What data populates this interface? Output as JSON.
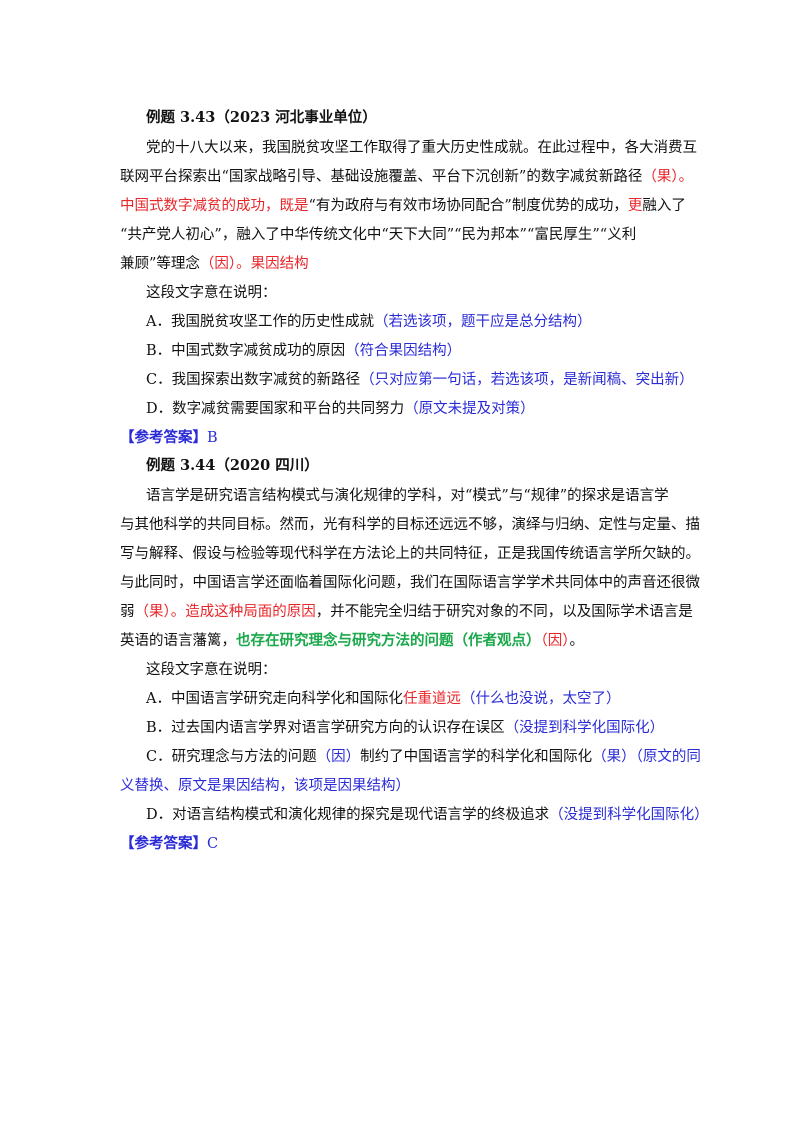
{
  "ex1": {
    "title": "例题 3.43（2023 河北事业单位）",
    "p1": "党的十八大以来，我国脱贫攻坚工作取得了重大历史性成就。在此过程中，各大消费互",
    "p2a": "联网平台探索出“国家战略引导、基础设施覆盖、平台下沉创新”的数字减贫新路径",
    "p2b": "（果）。",
    "p3a": "中国式数字减贫的成功，既是",
    "p3b": "“有为政府与有效市场协同配合”制度优势的成功，",
    "p3c": "更",
    "p3d": "融入了",
    "p4": "“共产党人初心”，融入了中华传统文化中“天下大同”“民为邦本”“富民厚生”“义利",
    "p5a": "兼顾”等理念",
    "p5b": "（因）。果因结构",
    "question": "这段文字意在说明：",
    "options": [
      {
        "text": "A．我国脱贫攻坚工作的历史性成就",
        "note": "（若选该项，题干应是总分结构）"
      },
      {
        "text": "B．中国式数字减贫成功的原因",
        "note": "（符合果因结构）"
      },
      {
        "text": "C．我国探索出数字减贫的新路径",
        "note": "（只对应第一句话，若选该项，是新闻稿、突出新）"
      },
      {
        "text": "D．数字减贫需要国家和平台的共同努力",
        "note": "（原文未提及对策）"
      }
    ],
    "answer_label": "【参考答案】",
    "answer": "B"
  },
  "ex2": {
    "title": "例题 3.44（2020 四川）",
    "p1": "语言学是研究语言结构模式与演化规律的学科，对“模式”与“规律”的探求是语言学",
    "p2": "与其他科学的共同目标。然而，光有科学的目标还远远不够，演绎与归纳、定性与定量、描",
    "p3": "写与解释、假设与检验等现代科学在方法论上的共同特征，正是我国传统语言学所欠缺的。",
    "p4": "与此同时，中国语言学还面临着国际化问题，我们在国际语言学学术共同体中的声音还很微",
    "p5a": "弱",
    "p5b": "（果）。造成这种局面的原因",
    "p5c": "，并不能完全归结于研究对象的不同，以及国际学术语言是",
    "p6a": "英语的语言藩篱，",
    "p6b": "也存在研究理念与研究方法的问题（作者观点）",
    "p6c": "（因）",
    "p6d": "。",
    "question": "这段文字意在说明：",
    "optA_text": "A．中国语言学研究走向科学化和国际化",
    "optA_red": "任重道远",
    "optA_note": "（什么也没说，太空了）",
    "optB_text": "B．过去国内语言学界对语言学研究方向的认识存在误区",
    "optB_note": "（没提到科学化国际化）",
    "optC_1": "C．研究理念与方法的问题",
    "optC_2": "（因）",
    "optC_3": "制约了中国语言学的科学化和国际化",
    "optC_4": "（果）（原文的同",
    "optC_5": "义替换、原文是果因结构，该项是因果结构）",
    "optD_text": "D．对语言结构模式和演化规律的探究是现代语言学的终极追求",
    "optD_note": "（没提到科学化国际化）",
    "answer_label": "【参考答案】",
    "answer": "C"
  },
  "colors": {
    "red": "#e8262a",
    "blue": "#2b2bd6",
    "green": "#1aa84a"
  }
}
